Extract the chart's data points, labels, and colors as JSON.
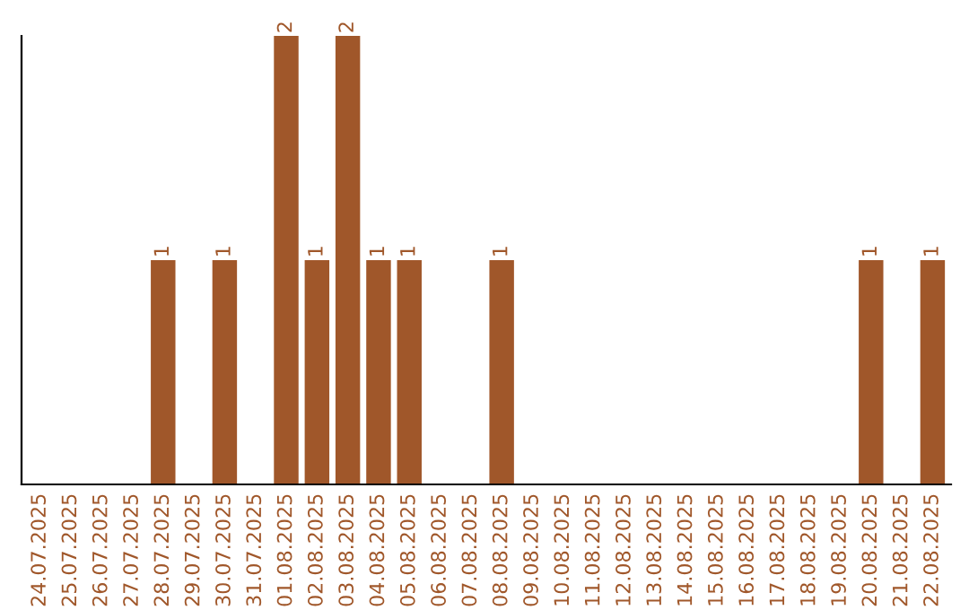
{
  "chart_data": {
    "type": "bar",
    "categories": [
      "24.07.2025",
      "25.07.2025",
      "26.07.2025",
      "27.07.2025",
      "28.07.2025",
      "29.07.2025",
      "30.07.2025",
      "31.07.2025",
      "01.08.2025",
      "02.08.2025",
      "03.08.2025",
      "04.08.2025",
      "05.08.2025",
      "06.08.2025",
      "07.08.2025",
      "08.08.2025",
      "09.08.2025",
      "10.08.2025",
      "11.08.2025",
      "12.08.2025",
      "13.08.2025",
      "14.08.2025",
      "15.08.2025",
      "16.08.2025",
      "17.08.2025",
      "18.08.2025",
      "19.08.2025",
      "20.08.2025",
      "21.08.2025",
      "22.08.2025"
    ],
    "values": [
      0,
      0,
      0,
      0,
      1,
      0,
      1,
      0,
      2,
      1,
      2,
      1,
      1,
      0,
      0,
      1,
      0,
      0,
      0,
      0,
      0,
      0,
      0,
      0,
      0,
      0,
      0,
      1,
      0,
      1
    ],
    "value_labels": [
      null,
      null,
      null,
      null,
      "1",
      null,
      "1",
      null,
      "2",
      "1",
      "2",
      "1",
      "1",
      null,
      null,
      "1",
      null,
      null,
      null,
      null,
      null,
      null,
      null,
      null,
      null,
      null,
      null,
      "1",
      null,
      "1"
    ],
    "color": "#a0572a",
    "ylim": [
      0,
      2
    ],
    "tick_labels": "x",
    "grid": false
  }
}
